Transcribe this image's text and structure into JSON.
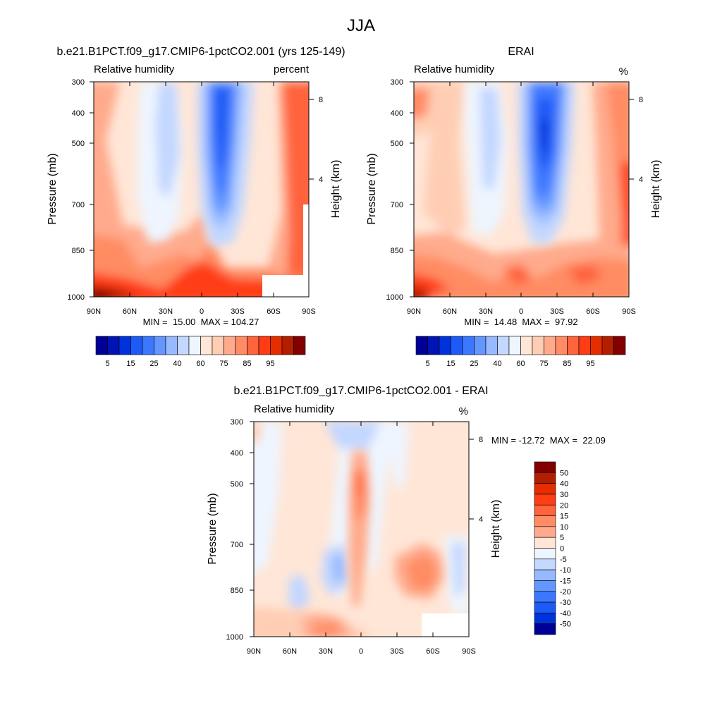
{
  "figure_title": "JJA",
  "colorbar_top": {
    "labels": [
      "5",
      "15",
      "25",
      "40",
      "60",
      "75",
      "85",
      "95"
    ],
    "colors": [
      "#000096",
      "#0014b4",
      "#0032dc",
      "#1e5af5",
      "#3c78ff",
      "#6496ff",
      "#96b9ff",
      "#c3d7ff",
      "#eef5ff",
      "#ffe6d7",
      "#ffcdb4",
      "#ffaa8c",
      "#ff8c64",
      "#ff643c",
      "#ff3c14",
      "#e62d00",
      "#b41e00",
      "#820000"
    ]
  },
  "colorbar_diff": {
    "labels": [
      "50",
      "40",
      "30",
      "20",
      "15",
      "10",
      "5",
      "0",
      "-5",
      "-10",
      "-15",
      "-20",
      "-30",
      "-40",
      "-50"
    ],
    "colors": [
      "#820000",
      "#b41e00",
      "#e62d00",
      "#ff3c14",
      "#ff643c",
      "#ff8c64",
      "#ffaa8c",
      "#ffe6d7",
      "#eef5ff",
      "#c3d7ff",
      "#96b9ff",
      "#6496ff",
      "#3c78ff",
      "#1e5af5",
      "#0032dc",
      "#000096"
    ]
  },
  "chart_data": [
    {
      "type": "heatmap",
      "title": "b.e21.B1PCT.f09_g17.CMIP6-1pctCO2.001 (yrs 125-149)",
      "left_string": "Relative humidity",
      "right_string": "percent",
      "ylabel": "Pressure (mb)",
      "ylabel_right": "Height (km)",
      "xticks": [
        "90N",
        "60N",
        "30N",
        "0",
        "30S",
        "60S",
        "90S"
      ],
      "yticks": [
        "300",
        "400",
        "500",
        "700",
        "850",
        "1000"
      ],
      "yticks_right": [
        "8",
        "4"
      ],
      "xlim": [
        90,
        -90
      ],
      "ylim": [
        1000,
        300
      ],
      "stats": "MIN =  15.00  MAX = 104.27",
      "min": 15.0,
      "max": 104.27
    },
    {
      "type": "heatmap",
      "title": "ERAI",
      "left_string": "Relative humidity",
      "right_string": "%",
      "ylabel": "Pressure (mb)",
      "ylabel_right": "Height (km)",
      "xticks": [
        "90N",
        "60N",
        "30N",
        "0",
        "30S",
        "60S",
        "90S"
      ],
      "yticks": [
        "300",
        "400",
        "500",
        "700",
        "850",
        "1000"
      ],
      "yticks_right": [
        "8",
        "4"
      ],
      "xlim": [
        90,
        -90
      ],
      "ylim": [
        1000,
        300
      ],
      "stats": "MIN =  14.48  MAX =  97.92",
      "min": 14.48,
      "max": 97.92
    },
    {
      "type": "heatmap",
      "title": "b.e21.B1PCT.f09_g17.CMIP6-1pctCO2.001 - ERAI",
      "left_string": "Relative humidity",
      "right_string": "%",
      "ylabel": "Pressure (mb)",
      "ylabel_right": "Height (km)",
      "xticks": [
        "90N",
        "60N",
        "30N",
        "0",
        "30S",
        "60S",
        "90S"
      ],
      "yticks": [
        "300",
        "400",
        "500",
        "700",
        "850",
        "1000"
      ],
      "yticks_right": [
        "8",
        "4"
      ],
      "xlim": [
        90,
        -90
      ],
      "ylim": [
        1000,
        300
      ],
      "stats": "MIN = -12.72  MAX =  22.09",
      "min": -12.72,
      "max": 22.09
    }
  ]
}
